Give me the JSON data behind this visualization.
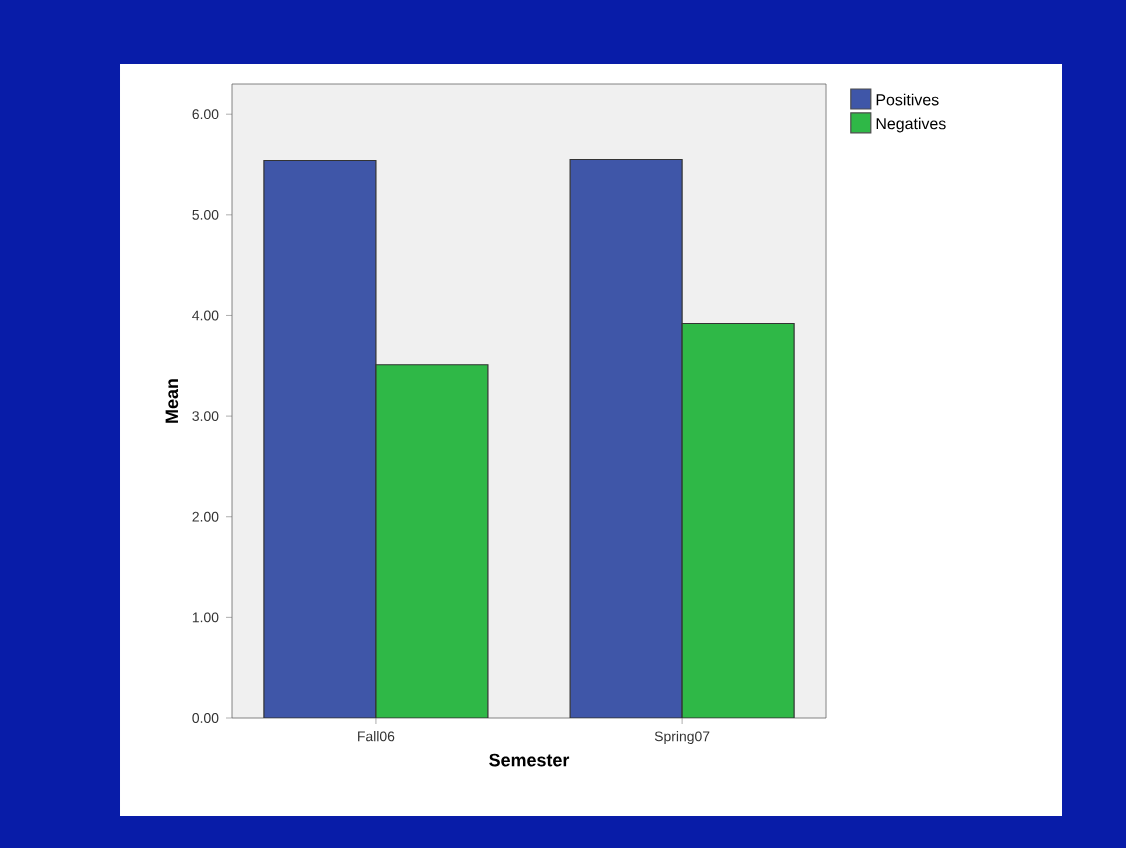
{
  "chart_data": {
    "type": "bar",
    "xlabel": "Semester",
    "ylabel": "Mean",
    "categories": [
      "Fall06",
      "Spring07"
    ],
    "series": [
      {
        "name": "Positives",
        "color": "#3f56a8",
        "values": [
          5.54,
          5.55
        ]
      },
      {
        "name": "Negatives",
        "color": "#2fb847",
        "values": [
          3.51,
          3.92
        ]
      }
    ],
    "ylim": [
      0,
      6.3
    ],
    "yticks": [
      {
        "value": 0,
        "label": "0.00"
      },
      {
        "value": 1,
        "label": "1.00"
      },
      {
        "value": 2,
        "label": "2.00"
      },
      {
        "value": 3,
        "label": "3.00"
      },
      {
        "value": 4,
        "label": "4.00"
      },
      {
        "value": 5,
        "label": "5.00"
      },
      {
        "value": 6,
        "label": "6.00"
      }
    ],
    "legend": "top right"
  }
}
